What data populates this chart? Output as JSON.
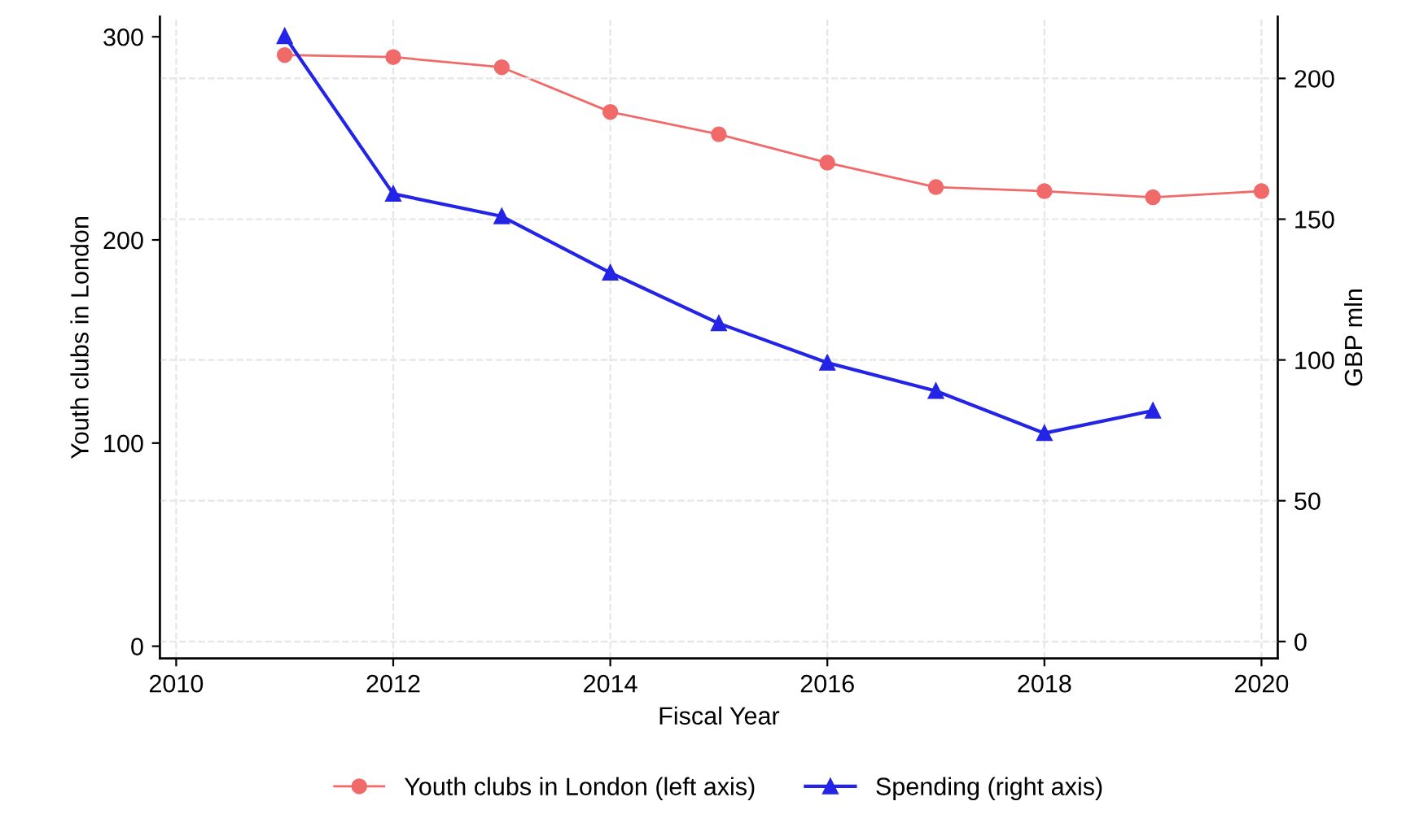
{
  "chart_data": {
    "type": "line",
    "xlabel": "Fiscal Year",
    "ylabel": "Youth clubs in London",
    "y2label": "GBP mln",
    "x": [
      2011,
      2012,
      2013,
      2014,
      2015,
      2016,
      2017,
      2018,
      2019,
      2020
    ],
    "series": [
      {
        "name": "Youth clubs in London (left axis)",
        "color": "#f06a6a",
        "marker": "circle",
        "values": [
          291,
          290,
          285,
          263,
          252,
          238,
          226,
          224,
          221,
          224
        ]
      },
      {
        "name": "Spending (right axis)",
        "color": "#2424e6",
        "marker": "triangle",
        "axis": "y2",
        "values": [
          215,
          159,
          151,
          131,
          113,
          99,
          89,
          74,
          82,
          null
        ]
      }
    ],
    "xlim": [
      2009.85,
      2020.15
    ],
    "xticks": [
      2010,
      2012,
      2014,
      2016,
      2018,
      2020
    ],
    "ylim": [
      -6,
      310
    ],
    "yticks": [
      0,
      100,
      200,
      300
    ],
    "y2lim": [
      -6,
      222
    ],
    "y2ticks": [
      0,
      50,
      100,
      150,
      200
    ],
    "grid": true,
    "legend": "bottom"
  }
}
